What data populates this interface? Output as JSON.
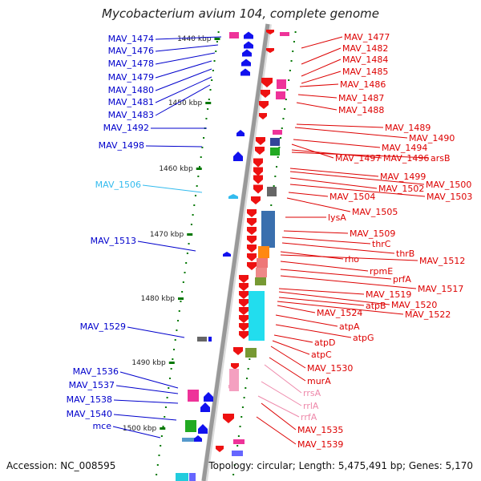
{
  "title": "Mycobacterium avium 104, complete genome",
  "accession": "Accession: NC_008595",
  "topology": "Topology: circular; Length: 5,475,491 bp; Genes: 5,170",
  "colors": {
    "left_label": "#0000cc",
    "highlight_label": "#33bbee",
    "right_label": "#dd0000",
    "pink_label": "#ee88aa",
    "tick": "#007700",
    "backbone": "#999999"
  },
  "kbp_ticks": [
    "1440 kbp",
    "1450 kbp",
    "1460 kbp",
    "1470 kbp",
    "1480 kbp",
    "1490 kbp",
    "1500 kbp"
  ],
  "left_labels": [
    {
      "text": "MAV_1474",
      "style": "blue"
    },
    {
      "text": "MAV_1476",
      "style": "blue"
    },
    {
      "text": "MAV_1478",
      "style": "blue"
    },
    {
      "text": "MAV_1479",
      "style": "blue"
    },
    {
      "text": "MAV_1480",
      "style": "blue"
    },
    {
      "text": "MAV_1481",
      "style": "blue"
    },
    {
      "text": "MAV_1483",
      "style": "blue"
    },
    {
      "text": "MAV_1492",
      "style": "blue"
    },
    {
      "text": "MAV_1498",
      "style": "blue"
    },
    {
      "text": "MAV_1506",
      "style": "cyan"
    },
    {
      "text": "MAV_1513",
      "style": "blue"
    },
    {
      "text": "MAV_1529",
      "style": "blue"
    },
    {
      "text": "MAV_1536",
      "style": "blue"
    },
    {
      "text": "MAV_1537",
      "style": "blue"
    },
    {
      "text": "MAV_1538",
      "style": "blue"
    },
    {
      "text": "MAV_1540",
      "style": "blue"
    },
    {
      "text": "mce",
      "style": "blue"
    }
  ],
  "right_labels": [
    {
      "text": "MAV_1477",
      "style": "red"
    },
    {
      "text": "MAV_1482",
      "style": "red"
    },
    {
      "text": "MAV_1484",
      "style": "red"
    },
    {
      "text": "MAV_1485",
      "style": "red"
    },
    {
      "text": "MAV_1486",
      "style": "red"
    },
    {
      "text": "MAV_1487",
      "style": "red"
    },
    {
      "text": "MAV_1488",
      "style": "red"
    },
    {
      "text": "MAV_1489",
      "style": "red"
    },
    {
      "text": "MAV_1490",
      "style": "red"
    },
    {
      "text": "MAV_1494",
      "style": "red"
    },
    {
      "text": "MAV_1497",
      "style": "red"
    },
    {
      "text": "MAV_1496",
      "style": "red"
    },
    {
      "text": "arsB",
      "style": "red"
    },
    {
      "text": "MAV_1499",
      "style": "red"
    },
    {
      "text": "MAV_1500",
      "style": "red"
    },
    {
      "text": "MAV_1502",
      "style": "red"
    },
    {
      "text": "MAV_1503",
      "style": "red"
    },
    {
      "text": "MAV_1504",
      "style": "red"
    },
    {
      "text": "MAV_1505",
      "style": "red"
    },
    {
      "text": "lysA",
      "style": "red"
    },
    {
      "text": "MAV_1509",
      "style": "red"
    },
    {
      "text": "thrC",
      "style": "red"
    },
    {
      "text": "thrB",
      "style": "red"
    },
    {
      "text": "rho",
      "style": "red"
    },
    {
      "text": "MAV_1512",
      "style": "red"
    },
    {
      "text": "rpmE",
      "style": "red"
    },
    {
      "text": "prfA",
      "style": "red"
    },
    {
      "text": "MAV_1517",
      "style": "red"
    },
    {
      "text": "MAV_1519",
      "style": "red"
    },
    {
      "text": "MAV_1520",
      "style": "red"
    },
    {
      "text": "atpB",
      "style": "red"
    },
    {
      "text": "MAV_1522",
      "style": "red"
    },
    {
      "text": "MAV_1524",
      "style": "red"
    },
    {
      "text": "atpA",
      "style": "red"
    },
    {
      "text": "atpG",
      "style": "red"
    },
    {
      "text": "atpD",
      "style": "red"
    },
    {
      "text": "atpC",
      "style": "red"
    },
    {
      "text": "MAV_1530",
      "style": "red"
    },
    {
      "text": "murA",
      "style": "red"
    },
    {
      "text": "rrsA",
      "style": "pink"
    },
    {
      "text": "rrlA",
      "style": "pink"
    },
    {
      "text": "rrfA",
      "style": "pink"
    },
    {
      "text": "MAV_1535",
      "style": "red"
    },
    {
      "text": "MAV_1539",
      "style": "red"
    }
  ]
}
